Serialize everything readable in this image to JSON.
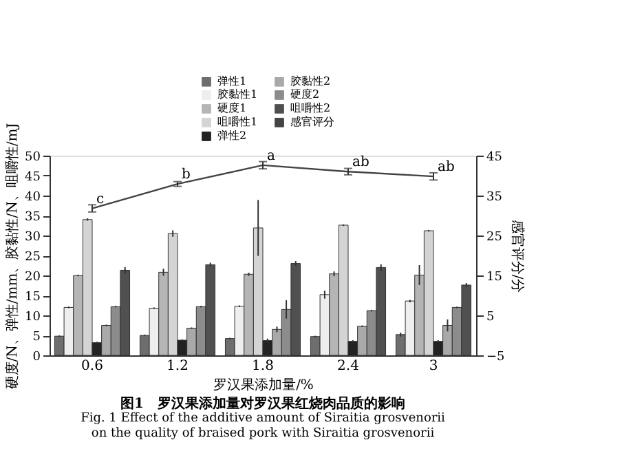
{
  "chart_data": {
    "type": "bar",
    "title": "图1　罗汉果添加量对罗汉果红烧肉品质的影响",
    "subtitle": "Fig. 1 Effect of the additive amount of Siraitia grosvenorii on the quality of braised pork with Siraitia grosvenorii",
    "xlabel": "罗汉果添加量/%",
    "ylabel": "硬度/N、弹性/mm、胶黏性/N、咀嚼性/mJ",
    "y2label": "感官评分/分",
    "categories": [
      "0.6",
      "1.2",
      "1.8",
      "2.4",
      "3"
    ],
    "series": [
      {
        "name": "弹性1",
        "color": "#6e6e6e",
        "values": [
          4.8,
          5.0,
          4.2,
          4.7,
          5.2
        ],
        "errors": [
          0.2,
          0.2,
          0.2,
          0.2,
          0.5
        ]
      },
      {
        "name": "胶黏性1",
        "color": "#eeeeee",
        "values": [
          12.0,
          11.8,
          12.3,
          15.2,
          13.6
        ],
        "errors": [
          0.2,
          0.2,
          0.2,
          1.0,
          0.3
        ]
      },
      {
        "name": "硬度1",
        "color": "#b5b5b5",
        "values": [
          20.0,
          20.8,
          20.3,
          20.4,
          20.1
        ],
        "errors": [
          0.2,
          0.9,
          0.4,
          0.6,
          2.5
        ]
      },
      {
        "name": "咀嚼性1",
        "color": "#d4d4d4",
        "values": [
          34.0,
          30.5,
          31.9,
          32.6,
          31.2
        ],
        "errors": [
          0.3,
          0.8,
          7.0,
          0.2,
          0.2
        ]
      },
      {
        "name": "弹性2",
        "color": "#222222",
        "values": [
          3.2,
          3.8,
          3.7,
          3.5,
          3.5
        ],
        "errors": [
          0.2,
          0.2,
          0.5,
          0.3,
          0.3
        ]
      },
      {
        "name": "胶黏性2",
        "color": "#a9a9a9",
        "values": [
          7.5,
          6.8,
          6.5,
          7.3,
          7.5
        ],
        "errors": [
          0.2,
          0.2,
          0.7,
          0.2,
          1.5
        ]
      },
      {
        "name": "硬度2",
        "color": "#8c8c8c",
        "values": [
          12.2,
          12.2,
          11.5,
          11.2,
          12.0
        ],
        "errors": [
          0.2,
          0.2,
          2.3,
          0.2,
          0.2
        ]
      },
      {
        "name": "咀嚼性2",
        "color": "#505050",
        "values": [
          21.3,
          22.7,
          23.0,
          22.0,
          17.6
        ],
        "errors": [
          0.8,
          0.5,
          0.6,
          0.8,
          0.5
        ]
      },
      {
        "name": "感官评分",
        "type": "line",
        "axis": "y2",
        "color": "#444444",
        "values": [
          31.8,
          37.9,
          42.6,
          41.0,
          39.8
        ],
        "errors": [
          0.9,
          0.6,
          0.9,
          0.8,
          0.9
        ]
      }
    ],
    "annotations": [
      "c",
      "b",
      "a",
      "ab",
      "ab"
    ],
    "ylim": [
      0,
      50
    ],
    "yticks": [
      0,
      5,
      10,
      15,
      20,
      25,
      30,
      35,
      40,
      45,
      50
    ],
    "y2lim": [
      -5,
      45
    ],
    "y2ticks": [
      -5,
      5,
      15,
      25,
      35,
      45
    ],
    "grid": false,
    "legend": "top right"
  }
}
